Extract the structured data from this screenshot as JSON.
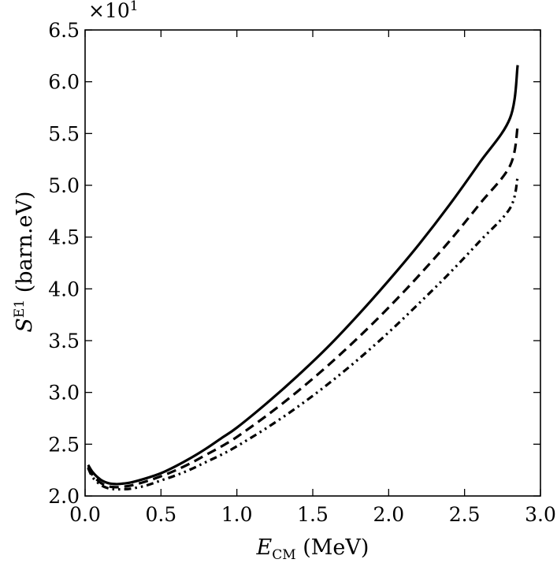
{
  "chart_data": {
    "type": "line",
    "title": "",
    "xlabel": {
      "main": "E",
      "sub": "CM",
      "unit": " (MeV)"
    },
    "ylabel": {
      "main": "S",
      "sup": "E1",
      "unit": " (barn.eV)"
    },
    "y_multiplier": {
      "base": "×10",
      "exp": "1"
    },
    "xlim": [
      0.0,
      3.0
    ],
    "ylim": [
      2.0,
      6.5
    ],
    "x_ticks": [
      0.0,
      0.5,
      1.0,
      1.5,
      2.0,
      2.5,
      3.0
    ],
    "x_tick_labels": [
      "0.0",
      "0.5",
      "1.0",
      "1.5",
      "2.0",
      "2.5",
      "3.0"
    ],
    "y_ticks": [
      2.0,
      2.5,
      3.0,
      3.5,
      4.0,
      4.5,
      5.0,
      5.5,
      6.0,
      6.5
    ],
    "y_tick_labels": [
      "2.0",
      "2.5",
      "3.0",
      "3.5",
      "4.0",
      "4.5",
      "5.0",
      "5.5",
      "6.0",
      "6.5"
    ],
    "grid": false,
    "legend": "none",
    "series": [
      {
        "style": "solid",
        "x": [
          0.02,
          0.05,
          0.1,
          0.15,
          0.2,
          0.25,
          0.3,
          0.4,
          0.5,
          0.6,
          0.7,
          0.8,
          0.9,
          1.0,
          1.2,
          1.4,
          1.6,
          1.8,
          2.0,
          2.2,
          2.4,
          2.6,
          2.8,
          2.85
        ],
        "y": [
          2.3,
          2.23,
          2.16,
          2.125,
          2.115,
          2.12,
          2.13,
          2.17,
          2.22,
          2.29,
          2.37,
          2.46,
          2.56,
          2.66,
          2.9,
          3.16,
          3.44,
          3.75,
          4.08,
          4.43,
          4.81,
          5.22,
          5.65,
          6.16
        ]
      },
      {
        "style": "dashed",
        "x": [
          0.02,
          0.05,
          0.1,
          0.15,
          0.2,
          0.25,
          0.3,
          0.4,
          0.5,
          0.6,
          0.7,
          0.8,
          0.9,
          1.0,
          1.2,
          1.4,
          1.6,
          1.8,
          2.0,
          2.2,
          2.4,
          2.6,
          2.8,
          2.85
        ],
        "y": [
          2.28,
          2.2,
          2.13,
          2.095,
          2.085,
          2.09,
          2.1,
          2.14,
          2.19,
          2.25,
          2.32,
          2.4,
          2.48,
          2.57,
          2.78,
          3.01,
          3.26,
          3.53,
          3.82,
          4.13,
          4.46,
          4.82,
          5.19,
          5.57
        ]
      },
      {
        "style": "dash-dot-dot",
        "x": [
          0.02,
          0.05,
          0.1,
          0.15,
          0.2,
          0.25,
          0.3,
          0.4,
          0.5,
          0.6,
          0.7,
          0.8,
          0.9,
          1.0,
          1.2,
          1.4,
          1.6,
          1.8,
          2.0,
          2.2,
          2.4,
          2.6,
          2.8,
          2.85
        ],
        "y": [
          2.27,
          2.18,
          2.11,
          2.075,
          2.065,
          2.065,
          2.07,
          2.1,
          2.15,
          2.2,
          2.26,
          2.33,
          2.4,
          2.48,
          2.66,
          2.86,
          3.08,
          3.32,
          3.58,
          3.86,
          4.15,
          4.46,
          4.78,
          5.08
        ]
      }
    ]
  }
}
